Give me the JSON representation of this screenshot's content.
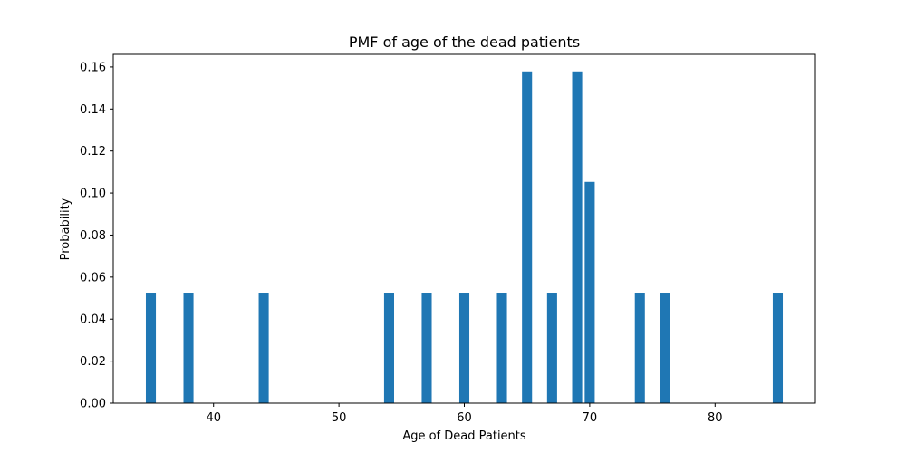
{
  "chart_data": {
    "type": "bar",
    "title": "PMF of age of the dead patients",
    "xlabel": "Age of Dead Patients",
    "ylabel": "Probability",
    "x": [
      35,
      38,
      44,
      54,
      57,
      60,
      63,
      65,
      67,
      69,
      70,
      74,
      76,
      85
    ],
    "values": [
      0.0526,
      0.0526,
      0.0526,
      0.0526,
      0.0526,
      0.0526,
      0.0526,
      0.1579,
      0.0526,
      0.1579,
      0.1053,
      0.0526,
      0.0526,
      0.0526
    ],
    "bar_width": 0.8,
    "xlim": [
      32.0,
      88.0
    ],
    "ylim": [
      0,
      0.166
    ],
    "xticks": [
      40,
      50,
      60,
      70,
      80
    ],
    "yticks": [
      0.0,
      0.02,
      0.04,
      0.06,
      0.08,
      0.1,
      0.12,
      0.14,
      0.16
    ],
    "ytick_labels": [
      "0.00",
      "0.02",
      "0.04",
      "0.06",
      "0.08",
      "0.10",
      "0.12",
      "0.14",
      "0.16"
    ],
    "bar_color": "#1f77b4",
    "grid": false,
    "legend": "none"
  }
}
